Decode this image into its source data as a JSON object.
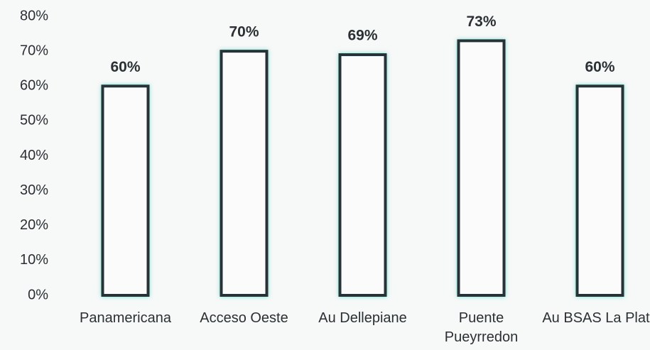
{
  "chart_data": {
    "type": "bar",
    "categories": [
      "Panamericana",
      "Acceso Oeste",
      "Au Dellepiane",
      "Puente Pueyrredon",
      "Au BSAS La Plata"
    ],
    "values": [
      60,
      70,
      69,
      73,
      60
    ],
    "value_labels": [
      "60%",
      "70%",
      "69%",
      "73%",
      "60%"
    ],
    "color": "#263238",
    "ylim": [
      0,
      80
    ],
    "yticks": [
      {
        "value": 0,
        "label": "0%"
      },
      {
        "value": 10,
        "label": "10%"
      },
      {
        "value": 20,
        "label": "20%"
      },
      {
        "value": 30,
        "label": "30%"
      },
      {
        "value": 40,
        "label": "40%"
      },
      {
        "value": 50,
        "label": "50%"
      },
      {
        "value": 60,
        "label": "60%"
      },
      {
        "value": 70,
        "label": "70%"
      },
      {
        "value": 80,
        "label": "80%"
      }
    ],
    "grid": false
  }
}
